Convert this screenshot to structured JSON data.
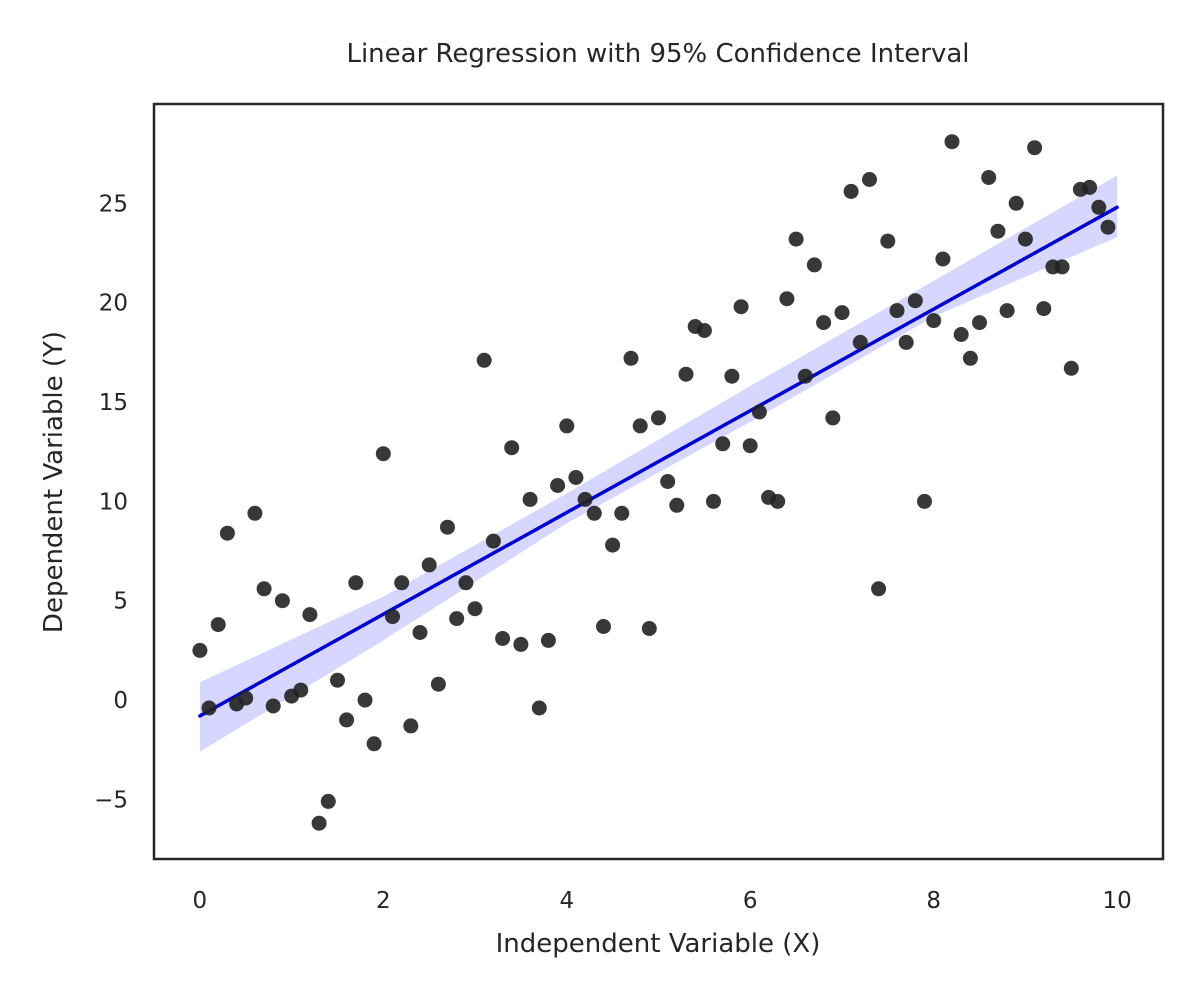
{
  "chart_data": {
    "type": "scatter",
    "title": "Linear Regression with 95% Confidence Interval",
    "xlabel": "Independent Variable (X)",
    "ylabel": "Dependent Variable (Y)",
    "xlim": [
      -0.5,
      10.5
    ],
    "ylim": [
      -8,
      30
    ],
    "xticks": [
      0,
      2,
      4,
      6,
      8,
      10
    ],
    "xtick_labels": [
      "0",
      "2",
      "4",
      "6",
      "8",
      "10"
    ],
    "yticks": [
      -5,
      0,
      5,
      10,
      15,
      20,
      25
    ],
    "ytick_labels": [
      "−5",
      "0",
      "5",
      "10",
      "15",
      "20",
      "25"
    ],
    "grid": false,
    "series": [
      {
        "type": "scatter",
        "color": "#222222",
        "points": [
          [
            0.0,
            2.5
          ],
          [
            0.1,
            -0.4
          ],
          [
            0.2,
            3.8
          ],
          [
            0.3,
            8.4
          ],
          [
            0.4,
            -0.2
          ],
          [
            0.5,
            0.1
          ],
          [
            0.6,
            9.4
          ],
          [
            0.7,
            5.6
          ],
          [
            0.8,
            -0.3
          ],
          [
            0.9,
            5.0
          ],
          [
            1.0,
            0.2
          ],
          [
            1.1,
            0.5
          ],
          [
            1.2,
            4.3
          ],
          [
            1.3,
            -6.2
          ],
          [
            1.4,
            -5.1
          ],
          [
            1.5,
            1.0
          ],
          [
            1.6,
            -1.0
          ],
          [
            1.7,
            5.9
          ],
          [
            1.8,
            0.0
          ],
          [
            1.9,
            -2.2
          ],
          [
            2.0,
            12.4
          ],
          [
            2.1,
            4.2
          ],
          [
            2.2,
            5.9
          ],
          [
            2.3,
            -1.3
          ],
          [
            2.4,
            3.4
          ],
          [
            2.5,
            6.8
          ],
          [
            2.6,
            0.8
          ],
          [
            2.7,
            8.7
          ],
          [
            2.8,
            4.1
          ],
          [
            2.9,
            5.9
          ],
          [
            3.0,
            4.6
          ],
          [
            3.1,
            17.1
          ],
          [
            3.2,
            8.0
          ],
          [
            3.3,
            3.1
          ],
          [
            3.4,
            12.7
          ],
          [
            3.5,
            2.8
          ],
          [
            3.6,
            10.1
          ],
          [
            3.7,
            -0.4
          ],
          [
            3.8,
            3.0
          ],
          [
            3.9,
            10.8
          ],
          [
            4.0,
            13.8
          ],
          [
            4.1,
            11.2
          ],
          [
            4.2,
            10.1
          ],
          [
            4.3,
            9.4
          ],
          [
            4.4,
            3.7
          ],
          [
            4.5,
            7.8
          ],
          [
            4.6,
            9.4
          ],
          [
            4.7,
            17.2
          ],
          [
            4.8,
            13.8
          ],
          [
            4.9,
            3.6
          ],
          [
            5.0,
            14.2
          ],
          [
            5.1,
            11.0
          ],
          [
            5.2,
            9.8
          ],
          [
            5.3,
            16.4
          ],
          [
            5.4,
            18.8
          ],
          [
            5.5,
            18.6
          ],
          [
            5.6,
            10.0
          ],
          [
            5.7,
            12.9
          ],
          [
            5.8,
            16.3
          ],
          [
            5.9,
            19.8
          ],
          [
            6.0,
            12.8
          ],
          [
            6.1,
            14.5
          ],
          [
            6.2,
            10.2
          ],
          [
            6.3,
            10.0
          ],
          [
            6.4,
            20.2
          ],
          [
            6.5,
            23.2
          ],
          [
            6.6,
            16.3
          ],
          [
            6.7,
            21.9
          ],
          [
            6.8,
            19.0
          ],
          [
            6.9,
            14.2
          ],
          [
            7.0,
            19.5
          ],
          [
            7.1,
            25.6
          ],
          [
            7.2,
            18.0
          ],
          [
            7.3,
            26.2
          ],
          [
            7.4,
            5.6
          ],
          [
            7.5,
            23.1
          ],
          [
            7.6,
            19.6
          ],
          [
            7.7,
            18.0
          ],
          [
            7.8,
            20.1
          ],
          [
            7.9,
            10.0
          ],
          [
            8.0,
            19.1
          ],
          [
            8.1,
            22.2
          ],
          [
            8.2,
            28.1
          ],
          [
            8.3,
            18.4
          ],
          [
            8.4,
            17.2
          ],
          [
            8.5,
            19.0
          ],
          [
            8.6,
            26.3
          ],
          [
            8.7,
            23.6
          ],
          [
            8.8,
            19.6
          ],
          [
            8.9,
            25.0
          ],
          [
            9.0,
            23.2
          ],
          [
            9.1,
            27.8
          ],
          [
            9.2,
            19.7
          ],
          [
            9.3,
            21.8
          ],
          [
            9.4,
            21.8
          ],
          [
            9.5,
            16.7
          ],
          [
            9.6,
            25.7
          ],
          [
            9.7,
            25.8
          ],
          [
            9.8,
            24.8
          ],
          [
            9.9,
            23.8
          ]
        ]
      },
      {
        "type": "line",
        "color": "#0000cc",
        "x": [
          0,
          10
        ],
        "y": [
          -0.8,
          24.8
        ]
      },
      {
        "type": "confidence-band",
        "color": "#c8c8ff",
        "x": [
          0,
          2,
          4,
          6,
          8,
          10
        ],
        "lower": [
          -2.6,
          3.0,
          8.9,
          14.0,
          19.3,
          23.3
        ],
        "upper": [
          0.9,
          5.2,
          10.4,
          15.8,
          21.1,
          26.4
        ]
      }
    ]
  }
}
